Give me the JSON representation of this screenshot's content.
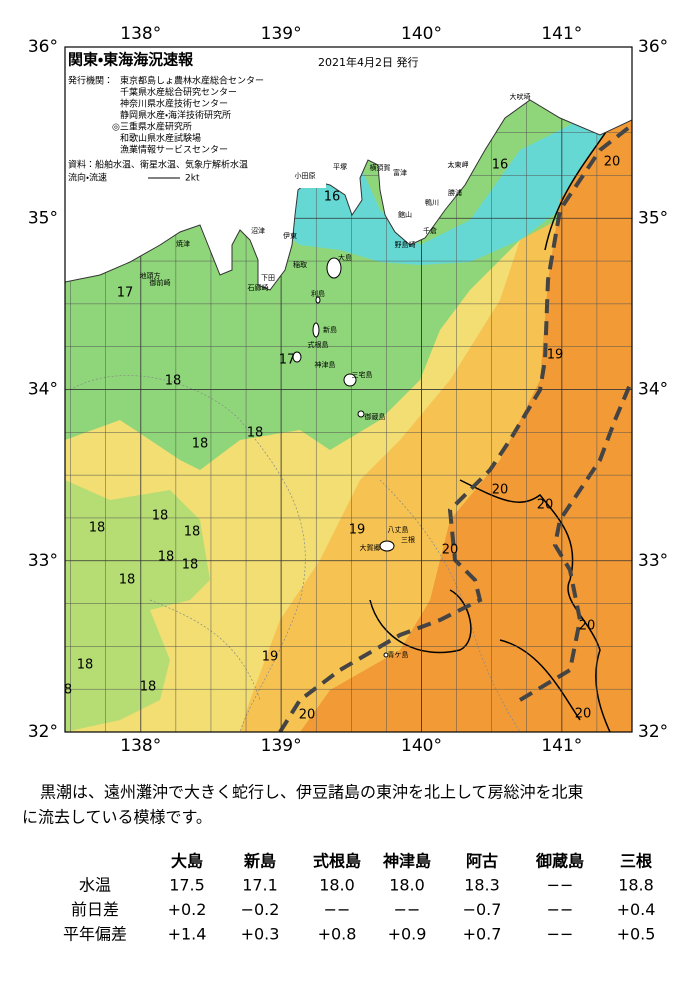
{
  "header": {
    "title": "関東・東海海況速報",
    "date": "2021年4月2日 発行",
    "publisher_label": "発行機関：",
    "publishers": [
      "東京都島しょ農林水産総合センター",
      "千葉県水産総合研究センター",
      "神奈川県水産技術センター",
      "静岡県水産・海洋技術研究所",
      "◎三重県水産研究所",
      "和歌山県水産試験場",
      "漁業情報サービスセンター"
    ],
    "sources": "資料：船舶水温、衛星水温、気象庁解析水温",
    "current_label": "流向・流速",
    "current_scale": "2kt"
  },
  "map": {
    "lon_range": [
      137.46,
      141.5
    ],
    "lat_range": [
      32,
      36
    ],
    "lon_ticks": [
      {
        "value": 138,
        "label": "138°"
      },
      {
        "value": 139,
        "label": "139°"
      },
      {
        "value": 140,
        "label": "140°"
      },
      {
        "value": 141,
        "label": "141°"
      }
    ],
    "lat_ticks": [
      {
        "value": 36,
        "label": "36°"
      },
      {
        "value": 35,
        "label": "35°"
      },
      {
        "value": 34,
        "label": "34°"
      },
      {
        "value": 33,
        "label": "33°"
      },
      {
        "value": 32,
        "label": "32°"
      }
    ],
    "isotherm_labels": [
      "16",
      "16",
      "17",
      "17",
      "18",
      "18",
      "18",
      "18",
      "18",
      "18",
      "18",
      "18",
      "18",
      "18",
      "18",
      "8",
      "19",
      "19",
      "19",
      "20",
      "20",
      "20",
      "20",
      "20",
      "20",
      "20"
    ],
    "places": [
      "大吠埼",
      "太東岬",
      "勝浦",
      "鴨川",
      "千倉",
      "野島崎",
      "館山",
      "富津",
      "横須賀",
      "平塚",
      "小田原",
      "沼津",
      "伊東",
      "稲取",
      "下田",
      "石廊崎",
      "焼津",
      "御前崎",
      "地頭方",
      "大島",
      "利島",
      "新島",
      "式根島",
      "神津島",
      "三宅島",
      "御蔵島",
      "八丈島",
      "三根",
      "大賀郷",
      "青ケ島"
    ]
  },
  "text": {
    "paragraph": [
      "黒潮は、遠州灘沖で大きく蛇行し、伊豆諸島の東沖を北上して房総沖を北東",
      "に流去している模様です。"
    ]
  },
  "table": {
    "columns": [
      "大島",
      "新島",
      "式根島",
      "神津島",
      "阿古",
      "御蔵島",
      "三根"
    ],
    "rows": [
      {
        "label": "水温",
        "cells": [
          "17.5",
          "17.1",
          "18.0",
          "18.0",
          "18.3",
          "−−",
          "18.8"
        ]
      },
      {
        "label": "前日差",
        "cells": [
          "+0.2",
          "−0.2",
          "−−",
          "−−",
          "−0.7",
          "−−",
          "+0.4"
        ]
      },
      {
        "label": "平年偏差",
        "cells": [
          "+1.4",
          "+0.3",
          "+0.8",
          "+0.9",
          "+0.7",
          "−−",
          "+0.5"
        ]
      }
    ]
  }
}
